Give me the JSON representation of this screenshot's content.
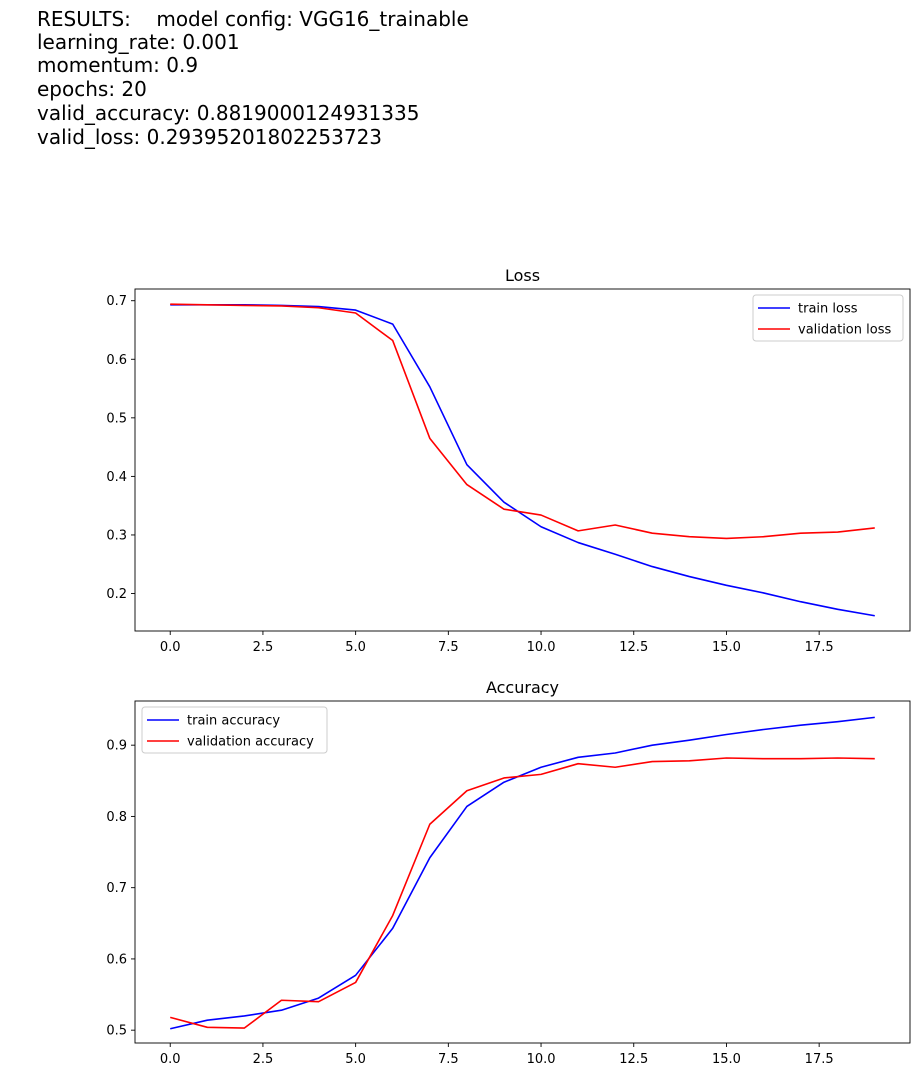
{
  "results": {
    "lines": [
      "RESULTS:    model config: VGG16_trainable",
      "learning_rate: 0.001",
      "momentum: 0.9",
      "epochs: 20",
      "valid_accuracy: 0.8819000124931335",
      "valid_loss: 0.29395201802253723"
    ]
  },
  "colors": {
    "train": "#0000ff",
    "validation": "#ff0000"
  },
  "chart_data": [
    {
      "type": "line",
      "title": "Loss",
      "xlabel": "",
      "ylabel": "",
      "grid": false,
      "legend": "top-right",
      "xlim": [
        -0.95,
        19.95
      ],
      "ylim": [
        0.136,
        0.72
      ],
      "xticks": [
        "0.0",
        "2.5",
        "5.0",
        "7.5",
        "10.0",
        "12.5",
        "15.0",
        "17.5"
      ],
      "yticks": [
        "0.2",
        "0.3",
        "0.4",
        "0.5",
        "0.6",
        "0.7"
      ],
      "x": [
        0,
        1,
        2,
        3,
        4,
        5,
        6,
        7,
        8,
        9,
        10,
        11,
        12,
        13,
        14,
        15,
        16,
        17,
        18,
        19
      ],
      "series": [
        {
          "name": "train loss",
          "color": "#0000ff",
          "values": [
            0.693,
            0.693,
            0.693,
            0.692,
            0.69,
            0.684,
            0.66,
            0.553,
            0.42,
            0.356,
            0.314,
            0.287,
            0.267,
            0.246,
            0.229,
            0.214,
            0.201,
            0.186,
            0.173,
            0.162
          ]
        },
        {
          "name": "validation loss",
          "color": "#ff0000",
          "values": [
            0.694,
            0.693,
            0.692,
            0.691,
            0.688,
            0.679,
            0.632,
            0.465,
            0.386,
            0.344,
            0.334,
            0.307,
            0.317,
            0.303,
            0.297,
            0.294,
            0.297,
            0.303,
            0.305,
            0.312
          ]
        }
      ]
    },
    {
      "type": "line",
      "title": "Accuracy",
      "xlabel": "",
      "ylabel": "",
      "grid": false,
      "legend": "top-left",
      "xlim": [
        -0.95,
        19.95
      ],
      "ylim": [
        0.482,
        0.962
      ],
      "xticks": [
        "0.0",
        "2.5",
        "5.0",
        "7.5",
        "10.0",
        "12.5",
        "15.0",
        "17.5"
      ],
      "yticks": [
        "0.5",
        "0.6",
        "0.7",
        "0.8",
        "0.9"
      ],
      "x": [
        0,
        1,
        2,
        3,
        4,
        5,
        6,
        7,
        8,
        9,
        10,
        11,
        12,
        13,
        14,
        15,
        16,
        17,
        18,
        19
      ],
      "series": [
        {
          "name": "train accuracy",
          "color": "#0000ff",
          "values": [
            0.502,
            0.514,
            0.52,
            0.528,
            0.545,
            0.577,
            0.643,
            0.742,
            0.814,
            0.848,
            0.869,
            0.883,
            0.889,
            0.9,
            0.907,
            0.915,
            0.922,
            0.928,
            0.933,
            0.939
          ]
        },
        {
          "name": "validation accuracy",
          "color": "#ff0000",
          "values": [
            0.518,
            0.504,
            0.503,
            0.542,
            0.54,
            0.567,
            0.661,
            0.789,
            0.836,
            0.854,
            0.859,
            0.874,
            0.869,
            0.877,
            0.878,
            0.882,
            0.881,
            0.881,
            0.882,
            0.881
          ]
        }
      ]
    }
  ]
}
